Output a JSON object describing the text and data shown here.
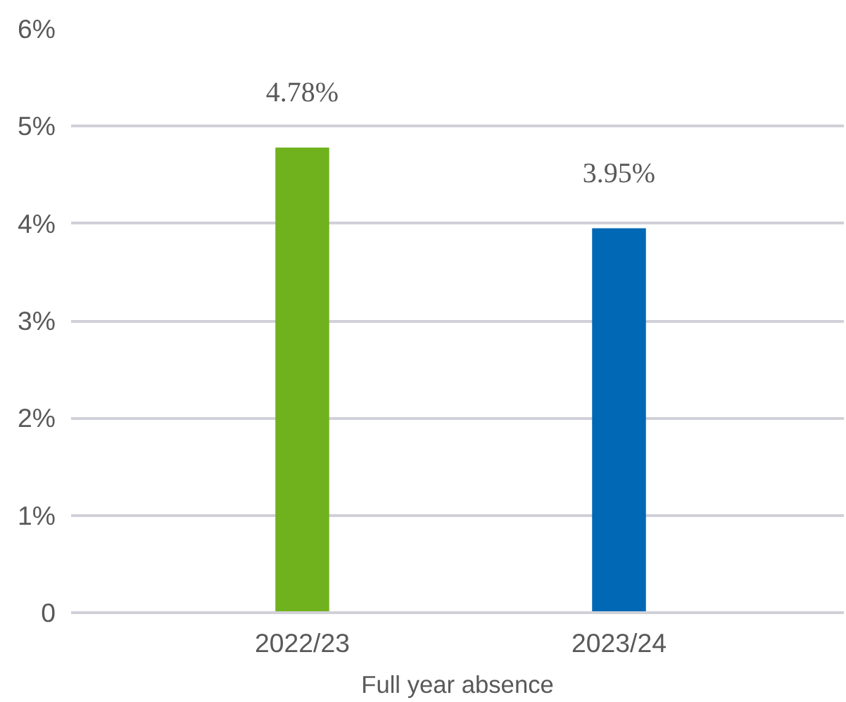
{
  "chart_data": {
    "type": "bar",
    "xlabel": "Full year absence",
    "categories": [
      "2022/23",
      "2023/24"
    ],
    "values": [
      4.78,
      3.95
    ],
    "colors": [
      "#70b21e",
      "#0068b5"
    ],
    "value_labels": [
      "4.78%",
      "3.95%"
    ],
    "ylim": [
      0,
      6
    ],
    "yticks": [
      0,
      {
        "value": 1,
        "label": "1%"
      },
      {
        "value": 2,
        "label": "2%"
      },
      {
        "value": 3,
        "label": "3%"
      },
      {
        "value": 4,
        "label": "4%"
      },
      {
        "value": 5,
        "label": "5%"
      },
      {
        "value": 6,
        "label": "6%"
      }
    ],
    "grid": "y"
  }
}
